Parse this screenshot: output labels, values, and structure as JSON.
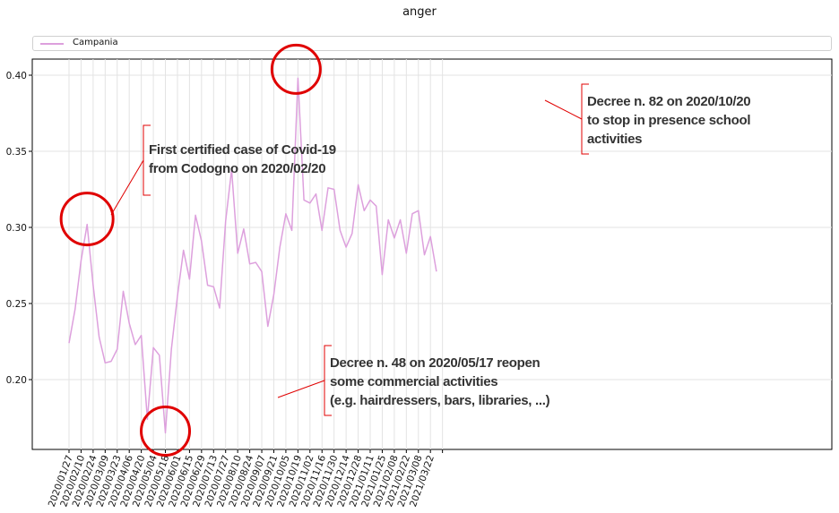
{
  "chart_data": {
    "type": "line",
    "title": "anger",
    "legend": {
      "placement": "top",
      "entries": [
        "Campania"
      ]
    },
    "grid": true,
    "ylim": [
      0.155,
      0.41
    ],
    "yticks": [
      "0.20",
      "0.25",
      "0.30",
      "0.35",
      "0.40"
    ],
    "ytick_values": [
      0.2,
      0.25,
      0.3,
      0.35,
      0.4
    ],
    "xticks": [
      "2020/01/27",
      "2020/02/10",
      "2020/02/24",
      "2020/03/09",
      "2020/03/23",
      "2020/04/06",
      "2020/04/20",
      "2020/05/04",
      "2020/05/18",
      "2020/06/01",
      "2020/06/15",
      "2020/06/29",
      "2020/07/13",
      "2020/07/27",
      "2020/08/10",
      "2020/08/24",
      "2020/09/07",
      "2020/09/21",
      "2020/10/05",
      "2020/10/19",
      "2020/11/02",
      "2020/11/16",
      "2020/11/30",
      "2020/12/14",
      "2020/12/28",
      "2021/01/11",
      "2021/01/25",
      "2021/02/08",
      "2021/02/22",
      "2021/03/08",
      "2021/03/22"
    ],
    "series": [
      {
        "name": "Campania",
        "color": "#dda0dd",
        "x": [
          "2020/01/27",
          "2020/02/03",
          "2020/02/10",
          "2020/02/17",
          "2020/02/24",
          "2020/03/02",
          "2020/03/09",
          "2020/03/16",
          "2020/03/23",
          "2020/03/30",
          "2020/04/06",
          "2020/04/13",
          "2020/04/20",
          "2020/04/27",
          "2020/05/04",
          "2020/05/11",
          "2020/05/18",
          "2020/05/25",
          "2020/06/01",
          "2020/06/08",
          "2020/06/15",
          "2020/06/22",
          "2020/06/29",
          "2020/07/06",
          "2020/07/13",
          "2020/07/20",
          "2020/07/27",
          "2020/08/03",
          "2020/08/10",
          "2020/08/17",
          "2020/08/24",
          "2020/08/31",
          "2020/09/07",
          "2020/09/14",
          "2020/09/21",
          "2020/09/28",
          "2020/10/05",
          "2020/10/12",
          "2020/10/19",
          "2020/10/26",
          "2020/11/02",
          "2020/11/09",
          "2020/11/16",
          "2020/11/23",
          "2020/11/30",
          "2020/12/07",
          "2020/12/14",
          "2020/12/21",
          "2020/12/28",
          "2021/01/04",
          "2021/01/11",
          "2021/01/18",
          "2021/01/25",
          "2021/02/01",
          "2021/02/08",
          "2021/02/15",
          "2021/02/22",
          "2021/03/01",
          "2021/03/08",
          "2021/03/15",
          "2021/03/22",
          "2021/03/29"
        ],
        "values": [
          0.224,
          0.246,
          0.278,
          0.302,
          0.262,
          0.228,
          0.211,
          0.212,
          0.22,
          0.258,
          0.237,
          0.223,
          0.229,
          0.174,
          0.221,
          0.216,
          0.165,
          0.22,
          0.255,
          0.285,
          0.266,
          0.308,
          0.291,
          0.262,
          0.261,
          0.247,
          0.304,
          0.338,
          0.283,
          0.299,
          0.276,
          0.277,
          0.271,
          0.235,
          0.256,
          0.287,
          0.309,
          0.298,
          0.398,
          0.318,
          0.316,
          0.322,
          0.298,
          0.326,
          0.325,
          0.298,
          0.287,
          0.296,
          0.328,
          0.311,
          0.318,
          0.314,
          0.269,
          0.305,
          0.293,
          0.305,
          0.283,
          0.309,
          0.311,
          0.282,
          0.294,
          0.271
        ]
      }
    ],
    "annotations": [
      {
        "lines": [
          "First certified case of Covid-19",
          "from Codogno on 2020/02/20"
        ],
        "x": "2020/02/17",
        "y": 0.302
      },
      {
        "lines": [
          "Decree n. 48 on 2020/05/17 reopen",
          "some commercial activities",
          "(e.g. hairdressers, bars, libraries, ...)"
        ],
        "x": "2020/05/18",
        "y": 0.165
      },
      {
        "lines": [
          "Decree n. 82 on 2020/10/20",
          "to stop in presence school",
          "activities"
        ],
        "x": "2020/10/19",
        "y": 0.398
      }
    ]
  }
}
